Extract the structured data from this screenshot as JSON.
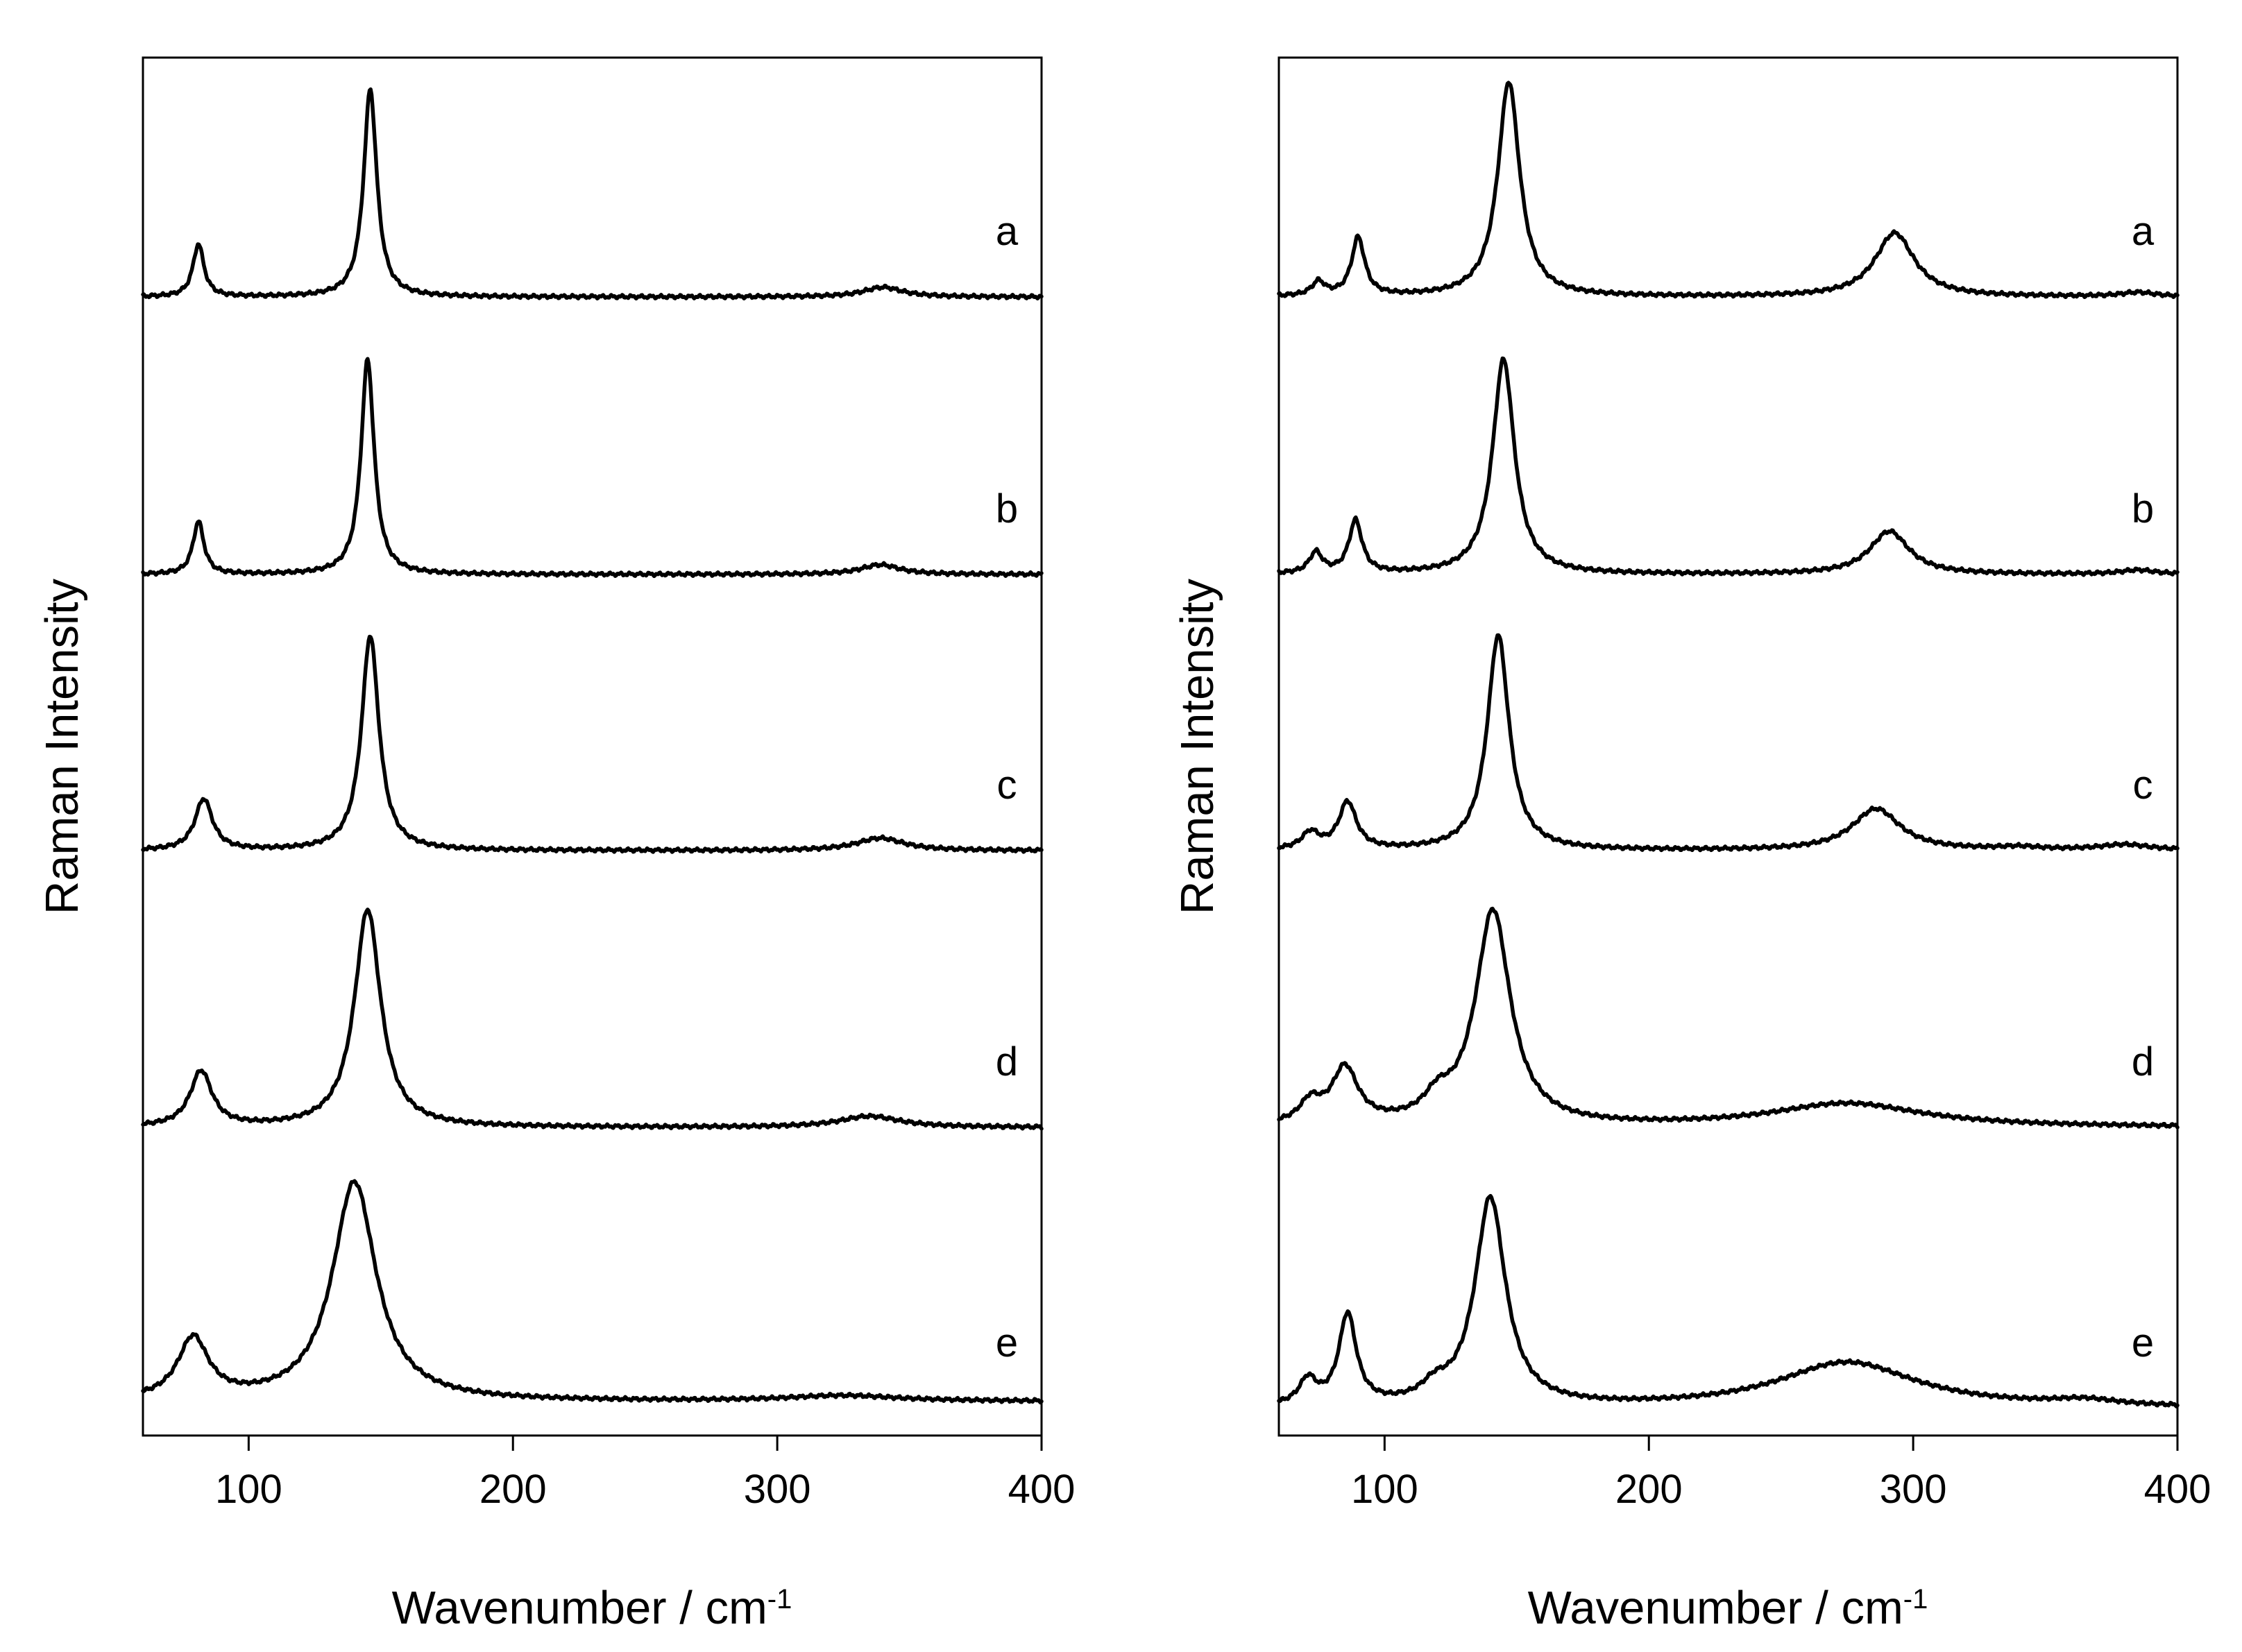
{
  "chart_data": [
    {
      "type": "line",
      "panel": "left",
      "xlabel": "Wavenumber / cm",
      "xlabel_superscript": "-1",
      "ylabel": "Raman Intensity",
      "xlim": [
        60,
        400
      ],
      "xticks": [
        "100",
        "200",
        "300",
        "400"
      ],
      "y_axis": "arbitrary units, stacked traces (offsets)",
      "series": [
        {
          "name": "a",
          "baseline": 0,
          "peaks": [
            {
              "position": 81,
              "height": 0.38,
              "width": 2.5
            },
            {
              "position": 146,
              "height": 1.5,
              "width": 3
            },
            {
              "position": 340,
              "height": 0.07,
              "width": 9
            }
          ]
        },
        {
          "name": "b",
          "baseline": 0,
          "peaks": [
            {
              "position": 81,
              "height": 0.38,
              "width": 2.5
            },
            {
              "position": 145,
              "height": 1.55,
              "width": 3
            },
            {
              "position": 339,
              "height": 0.07,
              "width": 9
            }
          ]
        },
        {
          "name": "c",
          "baseline": 0,
          "peaks": [
            {
              "position": 83,
              "height": 0.37,
              "width": 4
            },
            {
              "position": 146,
              "height": 1.55,
              "width": 4
            },
            {
              "position": 339,
              "height": 0.09,
              "width": 11
            }
          ]
        },
        {
          "name": "d",
          "baseline": 0,
          "peaks": [
            {
              "position": 82,
              "height": 0.4,
              "width": 5
            },
            {
              "position": 145,
              "height": 1.57,
              "width": 6
            },
            {
              "position": 335,
              "height": 0.08,
              "width": 14
            }
          ]
        },
        {
          "name": "e",
          "baseline": 0.05,
          "peaks": [
            {
              "position": 79,
              "height": 0.44,
              "width": 7
            },
            {
              "position": 140,
              "height": 1.58,
              "width": 10
            },
            {
              "position": 325,
              "height": 0.04,
              "width": 25
            }
          ]
        }
      ]
    },
    {
      "type": "line",
      "panel": "right",
      "xlabel": "Wavenumber / cm",
      "xlabel_superscript": "-1",
      "ylabel": "Raman Intensity",
      "xlim": [
        60,
        400
      ],
      "xticks": [
        "100",
        "200",
        "300",
        "400"
      ],
      "y_axis": "arbitrary units, stacked traces (offsets)",
      "series": [
        {
          "name": "a",
          "baseline": 0,
          "peaks": [
            {
              "position": 75,
              "height": 0.1,
              "width": 3
            },
            {
              "position": 90,
              "height": 0.42,
              "width": 3
            },
            {
              "position": 147,
              "height": 1.55,
              "width": 5
            },
            {
              "position": 293,
              "height": 0.46,
              "width": 9
            },
            {
              "position": 385,
              "height": 0.03,
              "width": 8
            }
          ]
        },
        {
          "name": "b",
          "baseline": 0,
          "peaks": [
            {
              "position": 74,
              "height": 0.15,
              "width": 3
            },
            {
              "position": 89,
              "height": 0.38,
              "width": 3
            },
            {
              "position": 145,
              "height": 1.55,
              "width": 5
            },
            {
              "position": 291,
              "height": 0.31,
              "width": 9
            },
            {
              "position": 385,
              "height": 0.03,
              "width": 8
            }
          ]
        },
        {
          "name": "c",
          "baseline": 0,
          "peaks": [
            {
              "position": 72,
              "height": 0.12,
              "width": 4
            },
            {
              "position": 86,
              "height": 0.34,
              "width": 4
            },
            {
              "position": 143,
              "height": 1.55,
              "width": 5
            },
            {
              "position": 286,
              "height": 0.3,
              "width": 11
            },
            {
              "position": 340,
              "height": 0.02,
              "width": 10
            },
            {
              "position": 380,
              "height": 0.04,
              "width": 12
            }
          ]
        },
        {
          "name": "d",
          "baseline": 0,
          "peaks": [
            {
              "position": 72,
              "height": 0.15,
              "width": 5
            },
            {
              "position": 85,
              "height": 0.4,
              "width": 6
            },
            {
              "position": 120,
              "height": 0.14,
              "width": 6
            },
            {
              "position": 141,
              "height": 1.55,
              "width": 8
            },
            {
              "position": 275,
              "height": 0.17,
              "width": 35
            }
          ]
        },
        {
          "name": "e",
          "baseline": 0,
          "peaks": [
            {
              "position": 71,
              "height": 0.18,
              "width": 4
            },
            {
              "position": 86,
              "height": 0.65,
              "width": 4
            },
            {
              "position": 119,
              "height": 0.1,
              "width": 6
            },
            {
              "position": 140,
              "height": 1.5,
              "width": 7
            },
            {
              "position": 275,
              "height": 0.33,
              "width": 32
            },
            {
              "position": 365,
              "height": 0.04,
              "width": 15
            }
          ]
        }
      ]
    }
  ]
}
